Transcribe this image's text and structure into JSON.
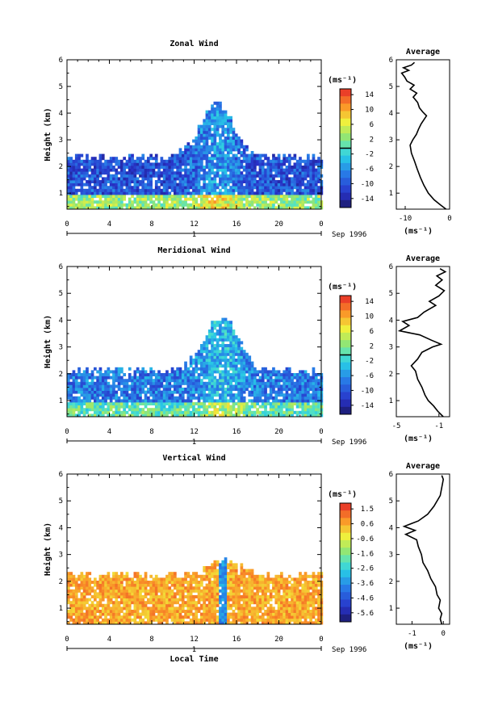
{
  "chart_data": [
    {
      "type": "heatmap",
      "title": "Zonal Wind",
      "xlabel": "",
      "ylabel": "Height (km)",
      "xlim": [
        0,
        24
      ],
      "ylim": [
        0.4,
        6
      ],
      "x_ticks": [
        "0",
        "4",
        "8",
        "12",
        "16",
        "20",
        "0"
      ],
      "y_ticks": [
        "1",
        "2",
        "3",
        "4",
        "5",
        "6"
      ],
      "date_label": "1",
      "date_suffix": "Sep 1996",
      "colorbar": {
        "unit": "(ms⁻¹)",
        "ticks": [
          "14",
          "10",
          "6",
          "2",
          "-2",
          "-6",
          "-10",
          "-14"
        ],
        "range": [
          -16,
          16
        ],
        "zero_line_value": 0
      },
      "field": {
        "min_value": -16,
        "max_value": 12,
        "typical_top_km": 2.4,
        "peak_time_hr": 14
      },
      "profile": {
        "title": "Average",
        "xlabel": "(ms⁻¹)",
        "xlim": [
          -12,
          0
        ],
        "x_ticks": [
          "-10",
          "0"
        ],
        "x_tick_values": [
          -10,
          0
        ],
        "y_ticks": [
          "1",
          "2",
          "3",
          "4",
          "5",
          "6"
        ],
        "points": [
          [
            -0.8,
            0.4
          ],
          [
            -2.0,
            0.55
          ],
          [
            -3.5,
            0.75
          ],
          [
            -4.8,
            1.0
          ],
          [
            -5.8,
            1.3
          ],
          [
            -6.6,
            1.6
          ],
          [
            -7.3,
            1.9
          ],
          [
            -7.9,
            2.2
          ],
          [
            -8.6,
            2.5
          ],
          [
            -8.9,
            2.8
          ],
          [
            -8.3,
            3.0
          ],
          [
            -7.5,
            3.2
          ],
          [
            -7.0,
            3.4
          ],
          [
            -6.4,
            3.6
          ],
          [
            -5.2,
            3.9
          ],
          [
            -6.1,
            4.05
          ],
          [
            -6.8,
            4.2
          ],
          [
            -7.2,
            4.4
          ],
          [
            -8.2,
            4.6
          ],
          [
            -7.4,
            4.75
          ],
          [
            -8.9,
            4.9
          ],
          [
            -8.0,
            5.05
          ],
          [
            -9.6,
            5.2
          ],
          [
            -10.1,
            5.35
          ],
          [
            -10.8,
            5.5
          ],
          [
            -9.2,
            5.6
          ],
          [
            -10.4,
            5.7
          ],
          [
            -8.6,
            5.8
          ],
          [
            -7.9,
            5.9
          ]
        ]
      }
    },
    {
      "type": "heatmap",
      "title": "Meridional Wind",
      "xlabel": "",
      "ylabel": "Height (km)",
      "xlim": [
        0,
        24
      ],
      "ylim": [
        0.4,
        6
      ],
      "x_ticks": [
        "0",
        "4",
        "8",
        "12",
        "16",
        "20",
        "0"
      ],
      "y_ticks": [
        "1",
        "2",
        "3",
        "4",
        "5",
        "6"
      ],
      "date_label": "1",
      "date_suffix": "Sep 1996",
      "colorbar": {
        "unit": "(ms⁻¹)",
        "ticks": [
          "14",
          "10",
          "6",
          "2",
          "-2",
          "-6",
          "-10",
          "-14"
        ],
        "range": [
          -16,
          16
        ],
        "zero_line_value": 0
      },
      "field": {
        "min_value": -12,
        "max_value": 6,
        "typical_top_km": 2.2,
        "peak_time_hr": 14.5
      },
      "profile": {
        "title": "Average",
        "xlabel": "(ms⁻¹)",
        "xlim": [
          -5,
          0
        ],
        "x_ticks": [
          "-5",
          "-1"
        ],
        "x_tick_values": [
          -5,
          -1
        ],
        "y_ticks": [
          "1",
          "2",
          "3",
          "4",
          "5",
          "6"
        ],
        "points": [
          [
            -0.6,
            0.4
          ],
          [
            -1.1,
            0.6
          ],
          [
            -1.5,
            0.8
          ],
          [
            -2.0,
            1.0
          ],
          [
            -2.3,
            1.2
          ],
          [
            -2.6,
            1.5
          ],
          [
            -3.0,
            1.8
          ],
          [
            -3.2,
            2.1
          ],
          [
            -3.6,
            2.3
          ],
          [
            -3.0,
            2.55
          ],
          [
            -2.6,
            2.8
          ],
          [
            -1.6,
            3.0
          ],
          [
            -0.8,
            3.1
          ],
          [
            -1.7,
            3.25
          ],
          [
            -2.8,
            3.45
          ],
          [
            -4.7,
            3.6
          ],
          [
            -3.8,
            3.8
          ],
          [
            -4.4,
            3.95
          ],
          [
            -3.0,
            4.1
          ],
          [
            -2.4,
            4.3
          ],
          [
            -1.3,
            4.55
          ],
          [
            -1.9,
            4.7
          ],
          [
            -1.0,
            4.9
          ],
          [
            -0.5,
            5.1
          ],
          [
            -1.3,
            5.3
          ],
          [
            -0.7,
            5.5
          ],
          [
            -1.2,
            5.65
          ],
          [
            -0.4,
            5.8
          ],
          [
            -0.9,
            5.92
          ]
        ]
      }
    },
    {
      "type": "heatmap",
      "title": "Vertical Wind",
      "xlabel": "Local Time",
      "ylabel": "Height (km)",
      "xlim": [
        0,
        24
      ],
      "ylim": [
        0.4,
        6
      ],
      "x_ticks": [
        "0",
        "4",
        "8",
        "12",
        "16",
        "20",
        "0"
      ],
      "y_ticks": [
        "1",
        "2",
        "3",
        "4",
        "5",
        "6"
      ],
      "date_label": "1",
      "date_suffix": "Sep 1996",
      "colorbar": {
        "unit": "(ms⁻¹)",
        "ticks": [
          "1.5",
          "0.6",
          "-0.6",
          "-1.6",
          "-2.6",
          "-3.6",
          "-4.6",
          "-5.6"
        ],
        "range": [
          -6,
          2
        ],
        "zero_line_value": null
      },
      "field": {
        "min_value": -5.6,
        "max_value": 1.5,
        "typical_top_km": 2.3,
        "peak_time_hr": 14.6
      },
      "profile": {
        "title": "Average",
        "xlabel": "(ms⁻¹)",
        "xlim": [
          -1.5,
          0.2
        ],
        "x_ticks": [
          "-1",
          "0"
        ],
        "x_tick_values": [
          -1,
          0
        ],
        "y_ticks": [
          "1",
          "2",
          "3",
          "4",
          "5",
          "6"
        ],
        "points": [
          [
            -0.05,
            0.4
          ],
          [
            -0.1,
            0.6
          ],
          [
            -0.05,
            0.8
          ],
          [
            -0.15,
            1.0
          ],
          [
            -0.1,
            1.3
          ],
          [
            -0.2,
            1.5
          ],
          [
            -0.25,
            1.8
          ],
          [
            -0.4,
            2.1
          ],
          [
            -0.5,
            2.4
          ],
          [
            -0.65,
            2.7
          ],
          [
            -0.7,
            3.0
          ],
          [
            -0.8,
            3.3
          ],
          [
            -0.85,
            3.55
          ],
          [
            -1.2,
            3.75
          ],
          [
            -0.9,
            3.9
          ],
          [
            -1.25,
            4.05
          ],
          [
            -0.8,
            4.25
          ],
          [
            -0.5,
            4.5
          ],
          [
            -0.3,
            4.8
          ],
          [
            -0.1,
            5.2
          ],
          [
            -0.05,
            5.5
          ],
          [
            0.0,
            5.8
          ],
          [
            -0.05,
            5.95
          ]
        ]
      }
    }
  ]
}
